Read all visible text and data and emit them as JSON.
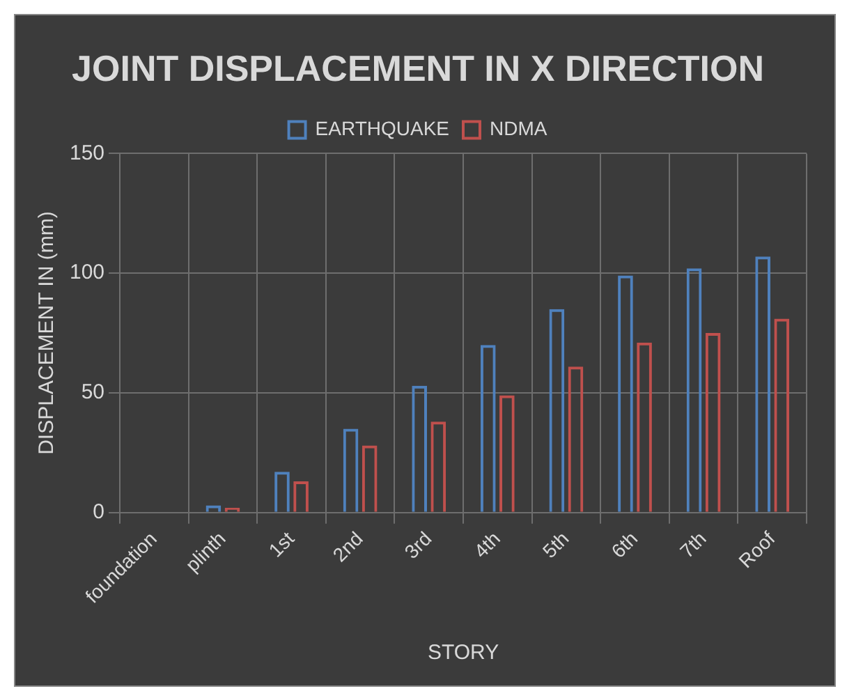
{
  "chart_data": {
    "type": "bar",
    "title": "JOINT DISPLACEMENT IN X DIRECTION",
    "xlabel": "STORY",
    "ylabel": "DISPLACEMENT IN (mm)",
    "categories": [
      "foundation",
      "plinth",
      "1st",
      "2nd",
      "3rd",
      "4th",
      "5th",
      "6th",
      "7th",
      "Roof"
    ],
    "series": [
      {
        "name": "EARTHQUAKE",
        "color": "#4f81bd",
        "values": [
          0,
          3,
          17,
          35,
          53,
          70,
          85,
          99,
          102,
          107
        ]
      },
      {
        "name": "NDMA",
        "color": "#c0504d",
        "values": [
          0,
          2,
          13,
          28,
          38,
          49,
          61,
          71,
          75,
          81
        ]
      }
    ],
    "ylim": [
      0,
      150
    ],
    "yticks": [
      0,
      50,
      100,
      150
    ],
    "grid": true,
    "legend": "top"
  }
}
